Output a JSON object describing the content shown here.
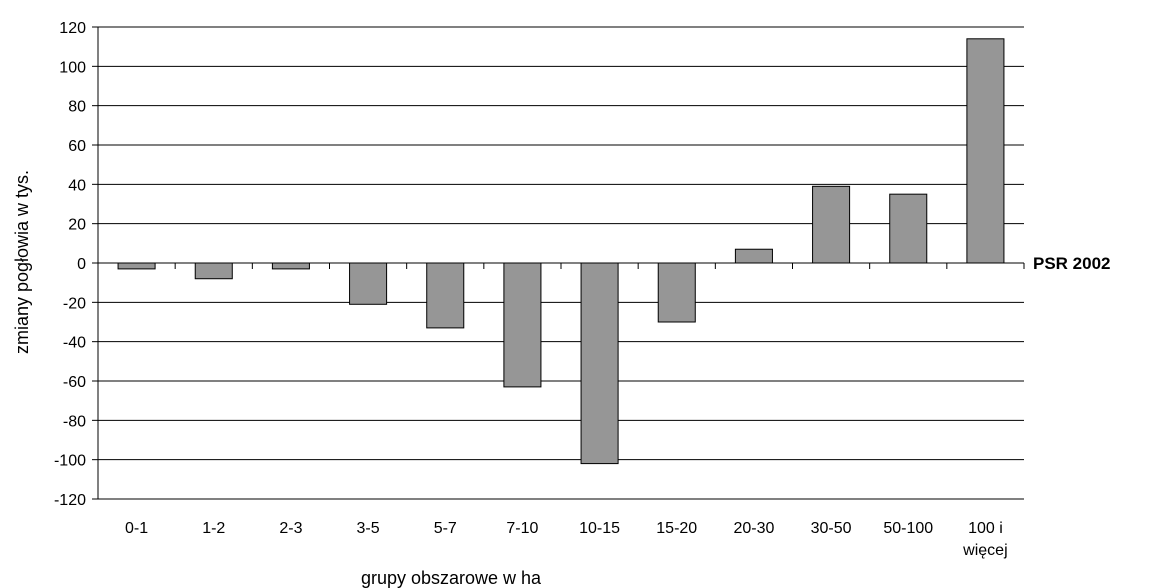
{
  "chart_data": {
    "type": "bar",
    "title": "",
    "xlabel": "grupy obszarowe w ha",
    "ylabel": "zmiany pogłowia w tys.",
    "series_label": "PSR 2002",
    "categories": [
      "0-1",
      "1-2",
      "2-3",
      "3-5",
      "5-7",
      "7-10",
      "10-15",
      "15-20",
      "20-30",
      "30-50",
      "50-100",
      "100 i więcej"
    ],
    "series": [
      {
        "name": "PSR 2002",
        "values": [
          -3,
          -8,
          -3,
          -21,
          -33,
          -63,
          -102,
          -30,
          7,
          39,
          35,
          114
        ]
      }
    ],
    "ylim": [
      -120,
      120
    ],
    "ytick_step": 20,
    "yticks": [
      "120",
      "100",
      "80",
      "60",
      "40",
      "20",
      "0",
      "-20",
      "-40",
      "-60",
      "-80",
      "-100",
      "-120"
    ],
    "grid": true,
    "bar_color": "#969696",
    "bar_edge_color": "#000000"
  }
}
